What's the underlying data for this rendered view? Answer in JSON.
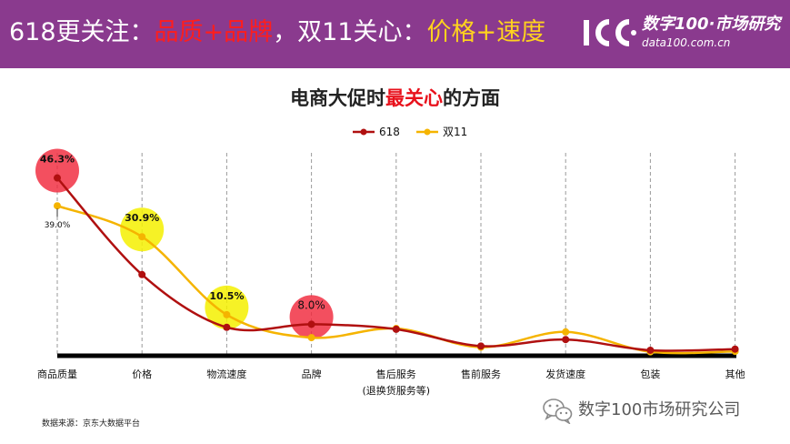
{
  "header": {
    "title_part1": "618更关注：",
    "title_part2": "品质+品牌",
    "title_part3": "，双11关心：",
    "title_part4": "价格+速度"
  },
  "logo": {
    "mark_icon": "logo-100-mark-icon",
    "name": "数字100·市场研究",
    "url": "data100.com.cn"
  },
  "chart_title": {
    "part1": "电商大促时",
    "part2": "最关心",
    "part3": "的方面"
  },
  "colors": {
    "header_bg": "#8a3a8e",
    "series_618": "#b01010",
    "series_double11": "#f5b400",
    "highlight_red": "#f0283c",
    "highlight_yellow": "#f5f000",
    "title_accent": "#e8111c"
  },
  "chart_data": {
    "type": "line",
    "categories": [
      "商品质量",
      "价格",
      "物流速度",
      "品牌",
      "售后服务",
      "售前服务",
      "发货速度",
      "包装",
      "其他"
    ],
    "category_sublabels": [
      "",
      "",
      "",
      "",
      "(退换货服务等)",
      "",
      "",
      "",
      ""
    ],
    "series": [
      {
        "name": "618",
        "values": [
          46.3,
          21.0,
          7.2,
          8.0,
          6.7,
          2.3,
          4.0,
          1.2,
          1.5
        ]
      },
      {
        "name": "双11",
        "values": [
          39.0,
          30.9,
          10.5,
          4.5,
          6.9,
          2.0,
          6.0,
          0.8,
          0.9
        ]
      }
    ],
    "data_labels": [
      {
        "series": 0,
        "index": 0,
        "text": "46.3%",
        "highlight": "red"
      },
      {
        "series": 1,
        "index": 0,
        "text": "39.0%",
        "highlight": ""
      },
      {
        "series": 1,
        "index": 1,
        "text": "30.9%",
        "highlight": "yellow"
      },
      {
        "series": 1,
        "index": 2,
        "text": "10.5%",
        "highlight": "yellow"
      },
      {
        "series": 0,
        "index": 3,
        "text": "8.0%",
        "highlight": "red"
      }
    ],
    "ylim": [
      0,
      50
    ],
    "legend_position": "top-center",
    "grid": "vertical-dashed",
    "smooth": true
  },
  "footer": {
    "source": "数据来源：京东大数据平台"
  },
  "watermark": {
    "icon": "wechat-icon",
    "text": "数字100市场研究公司"
  }
}
